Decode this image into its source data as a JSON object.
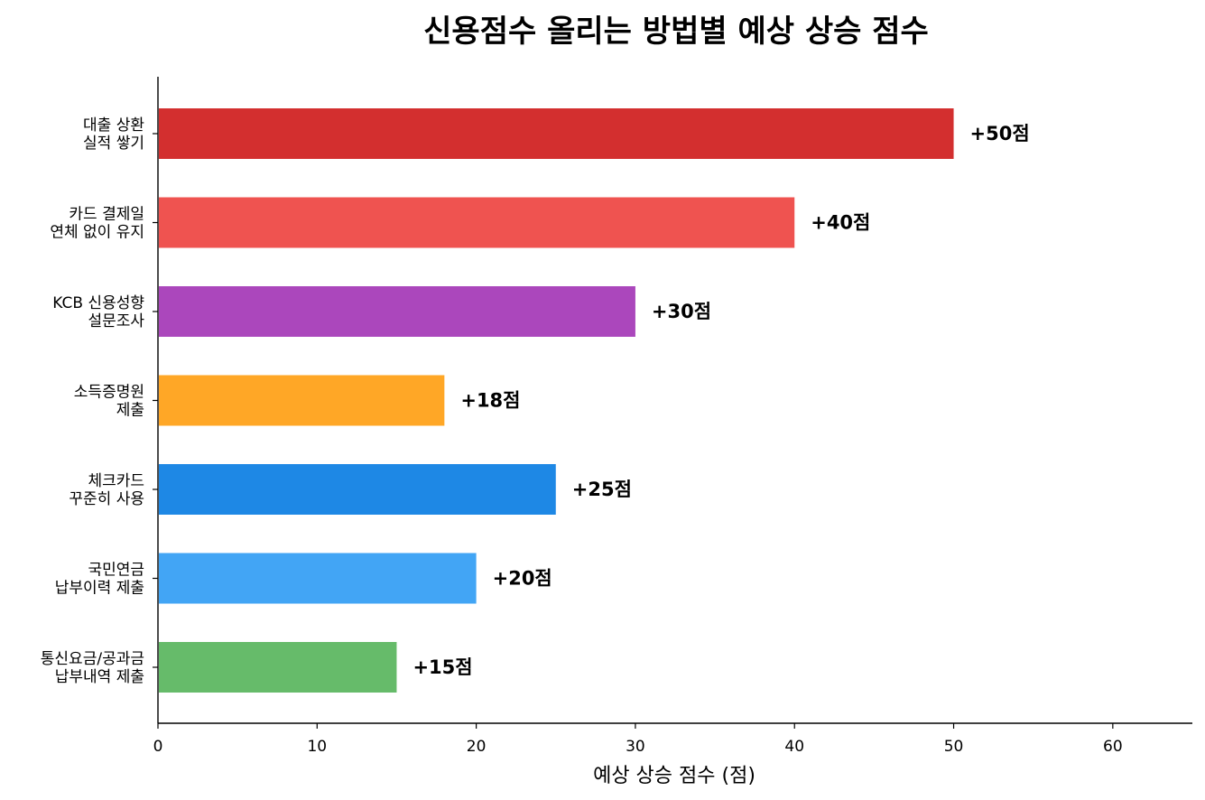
{
  "chart_data": {
    "type": "bar",
    "orientation": "horizontal",
    "title": "신용점수 올리는 방법별 예상 상승 점수",
    "xlabel": "예상 상승 점수 (점)",
    "ylabel": "",
    "xlim": [
      0,
      65
    ],
    "xticks": [
      0,
      10,
      20,
      30,
      40,
      50,
      60
    ],
    "grid": false,
    "categories": [
      [
        "대출 상환",
        "실적 쌓기"
      ],
      [
        "카드 결제일",
        "연체 없이 유지"
      ],
      [
        "KCB 신용성향",
        "설문조사"
      ],
      [
        "소득증명원",
        "제출"
      ],
      [
        "체크카드",
        "꾸준히 사용"
      ],
      [
        "국민연금",
        "납부이력 제출"
      ],
      [
        "통신요금/공과금",
        "납부내역 제출"
      ]
    ],
    "values": [
      50,
      40,
      30,
      18,
      25,
      20,
      15
    ],
    "data_labels": [
      "+50점",
      "+40점",
      "+30점",
      "+18점",
      "+25점",
      "+20점",
      "+15점"
    ],
    "colors": [
      "#d32f2f",
      "#ef5350",
      "#ab47bc",
      "#ffa726",
      "#1e88e5",
      "#42a5f5",
      "#66bb6a"
    ]
  }
}
